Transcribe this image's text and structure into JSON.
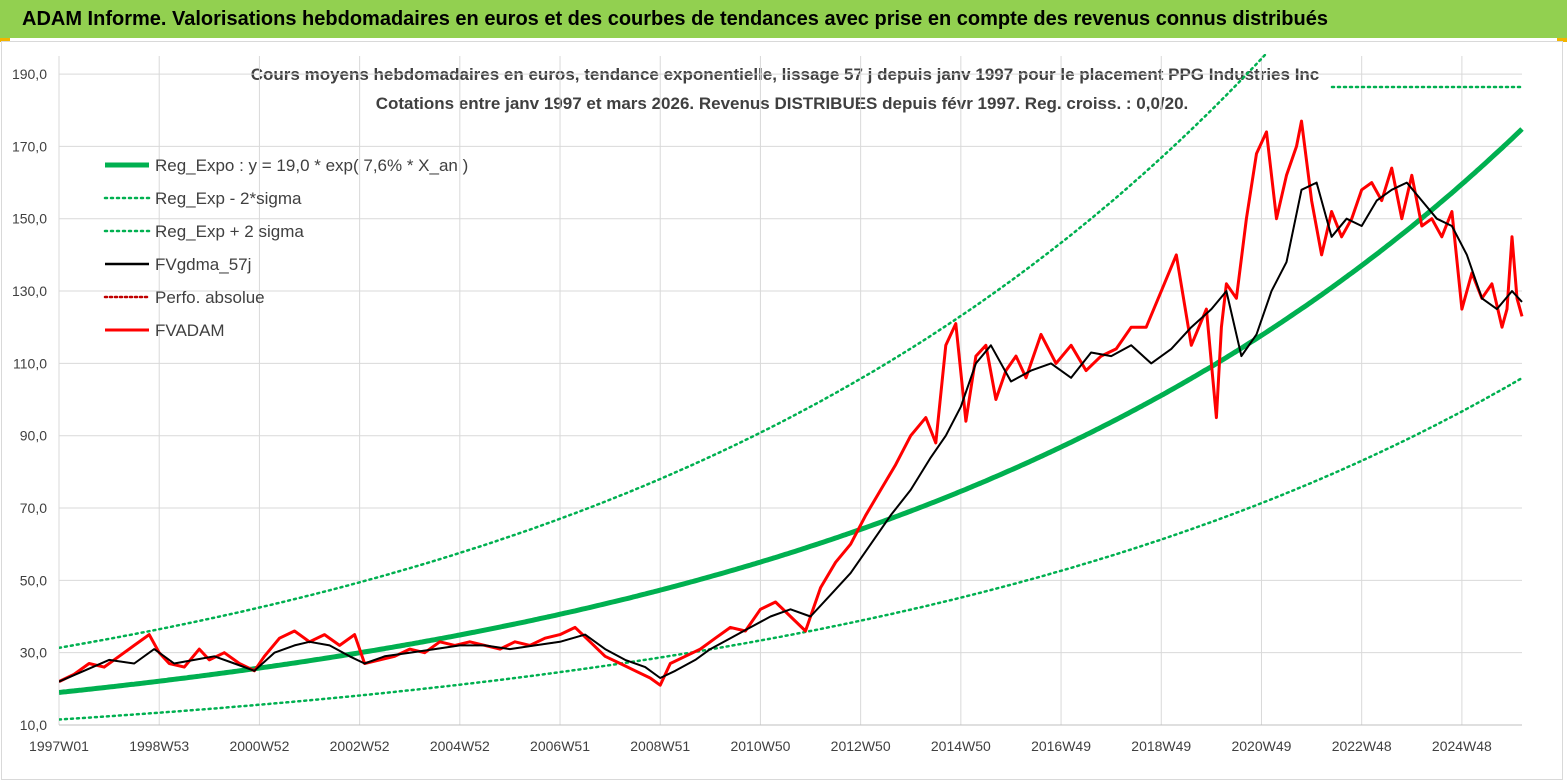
{
  "banner": {
    "title": "ADAM Informe. Valorisations hebdomadaires en euros et des courbes de tendances avec prise en compte des revenus connus distribués"
  },
  "colors": {
    "banner_bg": "#92d050",
    "regression": "#00b050",
    "sigma_band": "#00b050",
    "fvgdma": "#000000",
    "perfo": "#c00000",
    "fvadam": "#ff0000",
    "grid": "#d9d9d9"
  },
  "chart_data": {
    "type": "line",
    "title": "Cours moyens hebdomadaires en euros, tendance exponentielle, lissage 57 j depuis janv 1997 pour le placement PPG Industries Inc",
    "subtitle": "Cotations entre janv 1997 et mars 2026. Revenus DISTRIBUES depuis févr 1997. Reg. croiss. : 0,0/20.",
    "xlabel": "",
    "ylabel": "",
    "xlim": [
      1997.0,
      2026.2
    ],
    "ylim": [
      10,
      195
    ],
    "grid": true,
    "legend_position": "top-left",
    "y_ticks": [
      {
        "value": 10,
        "label": "10,0"
      },
      {
        "value": 30,
        "label": "30,0"
      },
      {
        "value": 50,
        "label": "50,0"
      },
      {
        "value": 70,
        "label": "70,0"
      },
      {
        "value": 90,
        "label": "90,0"
      },
      {
        "value": 110,
        "label": "110,0"
      },
      {
        "value": 130,
        "label": "130,0"
      },
      {
        "value": 150,
        "label": "150,0"
      },
      {
        "value": 170,
        "label": "170,0"
      },
      {
        "value": 190,
        "label": "190,0"
      }
    ],
    "x_ticks": [
      {
        "value": 1997.0,
        "label": "1997W01"
      },
      {
        "value": 1999.0,
        "label": "1998W53"
      },
      {
        "value": 2001.0,
        "label": "2000W52"
      },
      {
        "value": 2003.0,
        "label": "2002W52"
      },
      {
        "value": 2005.0,
        "label": "2004W52"
      },
      {
        "value": 2007.0,
        "label": "2006W51"
      },
      {
        "value": 2009.0,
        "label": "2008W51"
      },
      {
        "value": 2011.0,
        "label": "2010W50"
      },
      {
        "value": 2013.0,
        "label": "2012W50"
      },
      {
        "value": 2015.0,
        "label": "2014W50"
      },
      {
        "value": 2017.0,
        "label": "2016W49"
      },
      {
        "value": 2019.0,
        "label": "2018W49"
      },
      {
        "value": 2021.0,
        "label": "2020W49"
      },
      {
        "value": 2023.0,
        "label": "2022W48"
      },
      {
        "value": 2025.0,
        "label": "2024W48"
      }
    ],
    "regression": {
      "a": 19.0,
      "rate": 0.076,
      "x0": 1997.0,
      "sigma_factor": 1.65
    },
    "series": [
      {
        "name": "Reg_Expo : y = 19,0 * exp( 7,6% *  X_an )",
        "style": "reg"
      },
      {
        "name": "Reg_Exp - 2*sigma",
        "style": "band_low"
      },
      {
        "name": "Reg_Exp + 2 sigma",
        "style": "band_high"
      },
      {
        "name": "FVgdma_57j",
        "style": "smooth",
        "x": [
          1997.0,
          1997.5,
          1998.0,
          1998.5,
          1998.9,
          1999.3,
          1999.7,
          2000.1,
          2000.5,
          2000.9,
          2001.3,
          2001.7,
          2002.0,
          2002.4,
          2002.8,
          2003.1,
          2003.5,
          2004.0,
          2004.5,
          2005.0,
          2005.5,
          2006.0,
          2006.5,
          2007.0,
          2007.5,
          2007.9,
          2008.3,
          2008.7,
          2009.0,
          2009.3,
          2009.7,
          2010.0,
          2010.4,
          2010.8,
          2011.2,
          2011.6,
          2012.0,
          2012.4,
          2012.8,
          2013.2,
          2013.6,
          2014.0,
          2014.4,
          2014.7,
          2015.0,
          2015.3,
          2015.6,
          2016.0,
          2016.4,
          2016.8,
          2017.2,
          2017.6,
          2018.0,
          2018.4,
          2018.8,
          2019.2,
          2019.6,
          2020.0,
          2020.3,
          2020.6,
          2020.9,
          2021.2,
          2021.5,
          2021.8,
          2022.1,
          2022.4,
          2022.7,
          2023.0,
          2023.3,
          2023.6,
          2023.9,
          2024.2,
          2024.5,
          2024.8,
          2025.1,
          2025.4,
          2025.7,
          2026.0,
          2026.2
        ],
        "y": [
          22,
          25,
          28,
          27,
          31,
          27,
          28,
          29,
          27,
          25,
          30,
          32,
          33,
          32,
          29,
          27,
          29,
          30,
          31,
          32,
          32,
          31,
          32,
          33,
          35,
          31,
          28,
          26,
          23,
          25,
          28,
          31,
          34,
          37,
          40,
          42,
          40,
          46,
          52,
          60,
          68,
          75,
          84,
          90,
          98,
          110,
          115,
          105,
          108,
          110,
          106,
          113,
          112,
          115,
          110,
          114,
          120,
          125,
          130,
          112,
          118,
          130,
          138,
          158,
          160,
          145,
          150,
          148,
          155,
          158,
          160,
          155,
          150,
          148,
          140,
          128,
          125,
          130,
          127
        ]
      },
      {
        "name": "Perfo. absolue",
        "style": "perfo",
        "x": [
          1997.0,
          1997.5,
          1998.0,
          1998.5,
          1998.9,
          1999.3,
          1999.7,
          2000.1,
          2000.5,
          2000.9,
          2001.3,
          2001.7,
          2002.0,
          2002.4,
          2002.8,
          2003.1,
          2003.5,
          2004.0,
          2004.5,
          2005.0,
          2005.5,
          2006.0,
          2006.5,
          2007.0,
          2007.5,
          2007.9,
          2008.3,
          2008.7,
          2009.0,
          2009.3,
          2009.7,
          2010.0,
          2010.4,
          2010.8,
          2011.2,
          2011.6,
          2012.0,
          2012.4,
          2012.8,
          2013.2,
          2013.6,
          2014.0,
          2014.4,
          2014.7,
          2015.0,
          2015.3,
          2015.6,
          2016.0,
          2016.4,
          2016.8,
          2017.2,
          2017.6,
          2018.0,
          2018.4,
          2018.8,
          2019.2,
          2019.6,
          2020.0,
          2020.3,
          2020.6,
          2020.9,
          2021.2,
          2021.5,
          2021.8,
          2022.1,
          2022.4,
          2022.7,
          2023.0,
          2023.3,
          2023.6,
          2023.9,
          2024.2,
          2024.5,
          2024.8,
          2025.1,
          2025.4,
          2025.7,
          2026.0,
          2026.2
        ],
        "y": [
          22,
          25,
          28,
          27,
          31,
          27,
          28,
          29,
          27,
          25,
          30,
          32,
          33,
          32,
          29,
          27,
          29,
          30,
          31,
          32,
          32,
          31,
          32,
          33,
          35,
          31,
          28,
          26,
          23,
          25,
          28,
          31,
          34,
          37,
          40,
          42,
          40,
          46,
          52,
          60,
          68,
          75,
          84,
          90,
          98,
          110,
          115,
          105,
          108,
          110,
          106,
          113,
          112,
          115,
          110,
          114,
          120,
          125,
          130,
          112,
          118,
          130,
          138,
          158,
          160,
          145,
          150,
          148,
          155,
          158,
          160,
          155,
          150,
          148,
          140,
          128,
          125,
          130,
          127
        ]
      },
      {
        "name": "FVADAM",
        "style": "raw",
        "x": [
          1997.0,
          1997.3,
          1997.6,
          1997.9,
          1998.2,
          1998.5,
          1998.8,
          1999.0,
          1999.2,
          1999.5,
          1999.8,
          2000.0,
          2000.3,
          2000.6,
          2000.9,
          2001.1,
          2001.4,
          2001.7,
          2002.0,
          2002.3,
          2002.6,
          2002.9,
          2003.1,
          2003.4,
          2003.7,
          2004.0,
          2004.3,
          2004.6,
          2004.9,
          2005.2,
          2005.5,
          2005.8,
          2006.1,
          2006.4,
          2006.7,
          2007.0,
          2007.3,
          2007.6,
          2007.9,
          2008.2,
          2008.5,
          2008.8,
          2009.0,
          2009.2,
          2009.5,
          2009.8,
          2010.1,
          2010.4,
          2010.7,
          2011.0,
          2011.3,
          2011.6,
          2011.9,
          2012.2,
          2012.5,
          2012.8,
          2013.1,
          2013.4,
          2013.7,
          2014.0,
          2014.3,
          2014.5,
          2014.7,
          2014.9,
          2015.1,
          2015.3,
          2015.5,
          2015.7,
          2015.9,
          2016.1,
          2016.3,
          2016.6,
          2016.9,
          2017.2,
          2017.5,
          2017.8,
          2018.1,
          2018.4,
          2018.7,
          2019.0,
          2019.3,
          2019.6,
          2019.9,
          2020.1,
          2020.2,
          2020.3,
          2020.5,
          2020.7,
          2020.9,
          2021.1,
          2021.3,
          2021.5,
          2021.7,
          2021.8,
          2022.0,
          2022.2,
          2022.4,
          2022.6,
          2022.8,
          2023.0,
          2023.2,
          2023.4,
          2023.6,
          2023.8,
          2024.0,
          2024.2,
          2024.4,
          2024.6,
          2024.8,
          2025.0,
          2025.2,
          2025.4,
          2025.6,
          2025.8,
          2025.9,
          2026.0,
          2026.1,
          2026.2
        ],
        "y": [
          22,
          24,
          27,
          26,
          29,
          32,
          35,
          30,
          27,
          26,
          31,
          28,
          30,
          27,
          25,
          29,
          34,
          36,
          33,
          35,
          32,
          35,
          27,
          28,
          29,
          31,
          30,
          33,
          32,
          33,
          32,
          31,
          33,
          32,
          34,
          35,
          37,
          33,
          29,
          27,
          25,
          23,
          21,
          27,
          29,
          31,
          34,
          37,
          36,
          42,
          44,
          40,
          36,
          48,
          55,
          60,
          68,
          75,
          82,
          90,
          95,
          88,
          115,
          121,
          94,
          112,
          115,
          100,
          108,
          112,
          106,
          118,
          110,
          115,
          108,
          112,
          114,
          120,
          120,
          130,
          140,
          115,
          125,
          95,
          120,
          132,
          128,
          150,
          168,
          174,
          150,
          162,
          170,
          177,
          155,
          140,
          152,
          145,
          150,
          158,
          160,
          155,
          164,
          150,
          162,
          148,
          150,
          145,
          152,
          125,
          135,
          128,
          132,
          120,
          125,
          145,
          128,
          123
        ]
      }
    ]
  }
}
